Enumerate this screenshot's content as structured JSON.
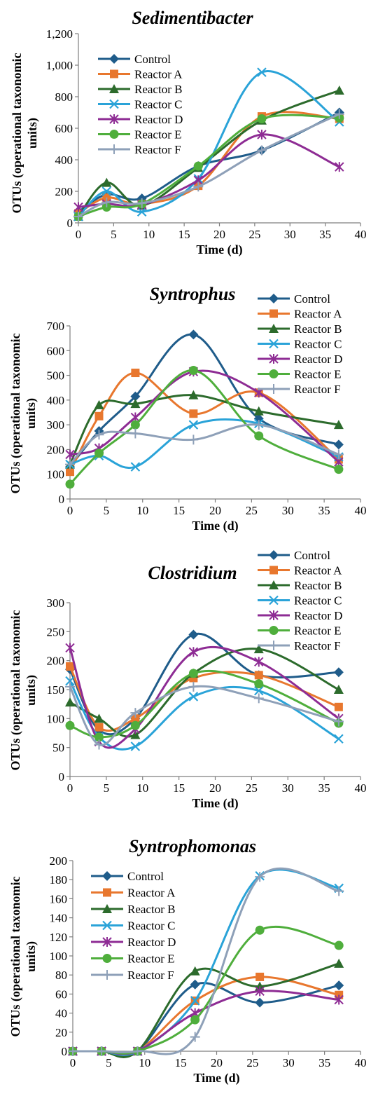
{
  "colors": {
    "Control": "#1f5c8a",
    "Reactor A": "#e8772e",
    "Reactor B": "#2c6b2c",
    "Reactor C": "#2aa3d8",
    "Reactor D": "#8e2c94",
    "Reactor E": "#4fae3c",
    "Reactor F": "#8ea0b8"
  },
  "chart_data": [
    {
      "type": "line",
      "title": "Sedimentibacter",
      "xlabel": "Time (d)",
      "ylabel": "OTUs (operational taxonomic units)",
      "xlim": [
        0,
        40
      ],
      "ylim": [
        0,
        1200
      ],
      "xticks": [
        "0",
        "5",
        "10",
        "15",
        "20",
        "25",
        "30",
        "35",
        "40"
      ],
      "yticks": [
        "0",
        "200",
        "400",
        "600",
        "800",
        "1,000",
        "1,200"
      ],
      "legend": "top-left",
      "x": [
        0,
        4,
        9,
        17,
        26,
        37
      ],
      "series": [
        {
          "name": "Control",
          "marker": "diamond",
          "values": [
            70,
            180,
            155,
            360,
            460,
            700
          ]
        },
        {
          "name": "Reactor A",
          "marker": "square",
          "values": [
            60,
            160,
            120,
            235,
            675,
            660
          ]
        },
        {
          "name": "Reactor B",
          "marker": "triangle",
          "values": [
            40,
            255,
            110,
            350,
            650,
            840
          ]
        },
        {
          "name": "Reactor C",
          "marker": "x",
          "values": [
            40,
            200,
            70,
            280,
            955,
            640
          ]
        },
        {
          "name": "Reactor D",
          "marker": "star",
          "values": [
            100,
            120,
            115,
            270,
            560,
            355
          ]
        },
        {
          "name": "Reactor E",
          "marker": "circle",
          "values": [
            40,
            100,
            120,
            360,
            660,
            665
          ]
        },
        {
          "name": "Reactor F",
          "marker": "plus",
          "values": [
            40,
            130,
            125,
            230,
            460,
            690
          ]
        }
      ]
    },
    {
      "type": "line",
      "title": "Syntrophus",
      "xlabel": "Time (d)",
      "ylabel": "OTUs (operational taxonomic units)",
      "xlim": [
        0,
        40
      ],
      "ylim": [
        0,
        700
      ],
      "xticks": [
        "0",
        "5",
        "10",
        "15",
        "20",
        "25",
        "30",
        "35",
        "40"
      ],
      "yticks": [
        "0",
        "100",
        "200",
        "300",
        "400",
        "500",
        "600",
        "700"
      ],
      "legend": "top-right",
      "x": [
        0,
        4,
        9,
        17,
        26,
        37
      ],
      "series": [
        {
          "name": "Control",
          "marker": "diamond",
          "values": [
            130,
            275,
            415,
            665,
            325,
            220
          ]
        },
        {
          "name": "Reactor A",
          "marker": "square",
          "values": [
            110,
            335,
            510,
            345,
            430,
            160
          ]
        },
        {
          "name": "Reactor B",
          "marker": "triangle",
          "values": [
            140,
            380,
            385,
            420,
            355,
            300
          ]
        },
        {
          "name": "Reactor C",
          "marker": "x",
          "values": [
            140,
            175,
            130,
            300,
            305,
            170
          ]
        },
        {
          "name": "Reactor D",
          "marker": "star",
          "values": [
            180,
            205,
            330,
            515,
            430,
            150
          ]
        },
        {
          "name": "Reactor E",
          "marker": "circle",
          "values": [
            60,
            185,
            300,
            520,
            255,
            120
          ]
        },
        {
          "name": "Reactor F",
          "marker": "plus",
          "values": [
            140,
            260,
            265,
            240,
            300,
            180
          ]
        }
      ]
    },
    {
      "type": "line",
      "title": "Clostridium",
      "xlabel": "Time (d)",
      "ylabel": "OTUs (operational taxonomic units)",
      "xlim": [
        0,
        40
      ],
      "ylim": [
        0,
        300
      ],
      "xticks": [
        "0",
        "5",
        "10",
        "15",
        "20",
        "25",
        "30",
        "35",
        "40"
      ],
      "yticks": [
        "0",
        "50",
        "100",
        "150",
        "200",
        "250",
        "300"
      ],
      "legend": "top-right",
      "x": [
        0,
        4,
        9,
        17,
        26,
        37
      ],
      "series": [
        {
          "name": "Control",
          "marker": "diamond",
          "values": [
            185,
            80,
            100,
            245,
            175,
            180
          ]
        },
        {
          "name": "Reactor A",
          "marker": "square",
          "values": [
            190,
            85,
            100,
            170,
            175,
            120
          ]
        },
        {
          "name": "Reactor B",
          "marker": "triangle",
          "values": [
            128,
            100,
            72,
            178,
            220,
            150
          ]
        },
        {
          "name": "Reactor C",
          "marker": "x",
          "values": [
            165,
            68,
            52,
            138,
            148,
            65
          ]
        },
        {
          "name": "Reactor D",
          "marker": "star",
          "values": [
            222,
            60,
            82,
            215,
            198,
            100
          ]
        },
        {
          "name": "Reactor E",
          "marker": "circle",
          "values": [
            88,
            68,
            88,
            178,
            160,
            92
          ]
        },
        {
          "name": "Reactor F",
          "marker": "plus",
          "values": [
            155,
            55,
            110,
            155,
            135,
            95
          ]
        }
      ]
    },
    {
      "type": "line",
      "title": "Syntrophomonas",
      "xlabel": "Time (d)",
      "ylabel": "OTUs (operational taxonomic units)",
      "xlim": [
        0,
        40
      ],
      "ylim": [
        0,
        200
      ],
      "xticks": [
        "0",
        "5",
        "10",
        "15",
        "20",
        "25",
        "30",
        "35",
        "40"
      ],
      "yticks": [
        "0",
        "20",
        "40",
        "60",
        "80",
        "100",
        "120",
        "140",
        "160",
        "180",
        "200"
      ],
      "legend": "top-left",
      "x": [
        0,
        4,
        9,
        17,
        26,
        37
      ],
      "series": [
        {
          "name": "Control",
          "marker": "diamond",
          "values": [
            0,
            0,
            0,
            70,
            51,
            69
          ]
        },
        {
          "name": "Reactor A",
          "marker": "square",
          "values": [
            0,
            0,
            0,
            53,
            78,
            59
          ]
        },
        {
          "name": "Reactor B",
          "marker": "triangle",
          "values": [
            0,
            0,
            0,
            84,
            68,
            92
          ]
        },
        {
          "name": "Reactor C",
          "marker": "x",
          "values": [
            0,
            0,
            0,
            53,
            184,
            171
          ]
        },
        {
          "name": "Reactor D",
          "marker": "star",
          "values": [
            0,
            0,
            0,
            40,
            63,
            54
          ]
        },
        {
          "name": "Reactor E",
          "marker": "circle",
          "values": [
            0,
            0,
            0,
            33,
            127,
            111
          ]
        },
        {
          "name": "Reactor F",
          "marker": "plus",
          "values": [
            0,
            0,
            0,
            15,
            183,
            168
          ]
        }
      ]
    }
  ]
}
